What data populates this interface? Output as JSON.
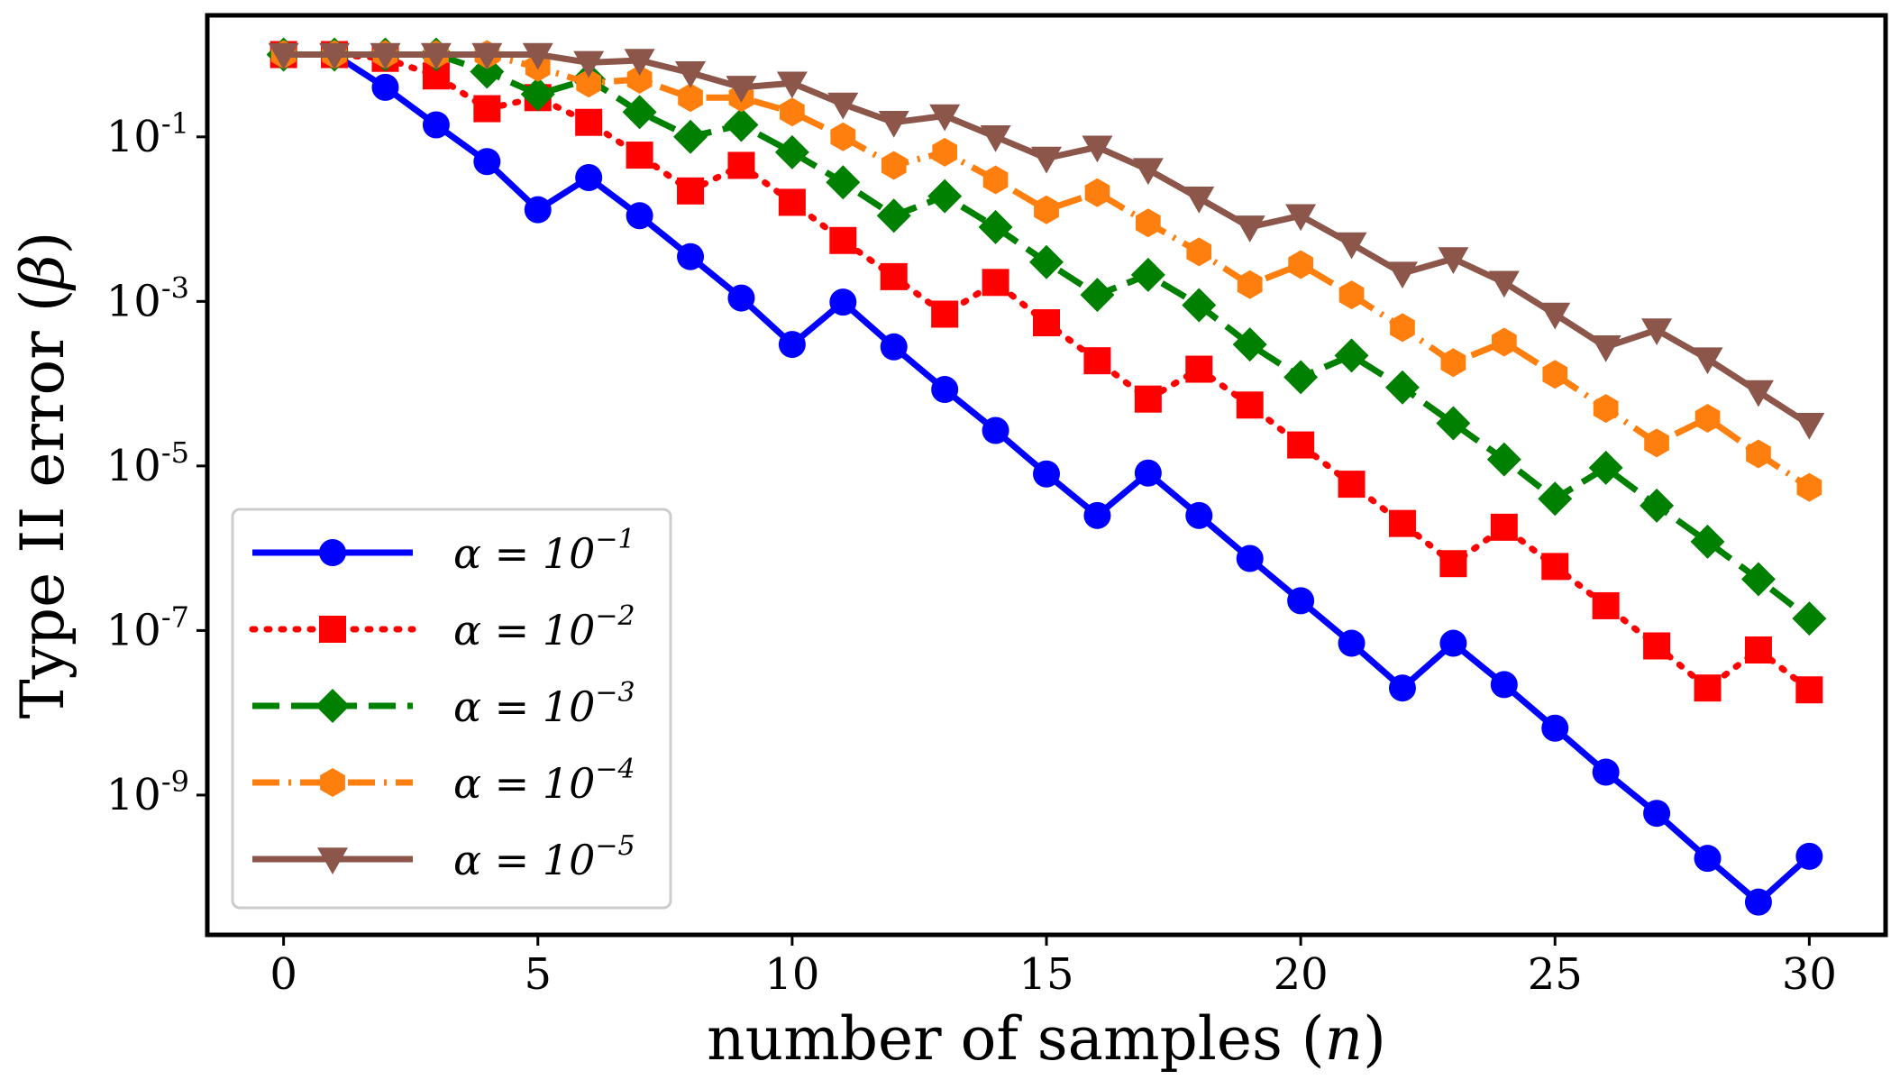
{
  "chart_data": {
    "type": "line",
    "xlabel": "number of samples (",
    "xlabel_var": "n",
    "xlabel_close": ")",
    "ylabel": "Type II error (",
    "ylabel_var": "β",
    "ylabel_close": ")",
    "xlim": [
      -1.5,
      31.5
    ],
    "ylim": [
      2e-11,
      3
    ],
    "yscale": "log",
    "xticks": [
      0,
      5,
      10,
      15,
      20,
      25,
      30
    ],
    "yticks": [
      {
        "value": 0.1,
        "base": "10",
        "exp": "-1"
      },
      {
        "value": 0.001,
        "base": "10",
        "exp": "-3"
      },
      {
        "value": 1e-05,
        "base": "10",
        "exp": "-5"
      },
      {
        "value": 1e-07,
        "base": "10",
        "exp": "-7"
      },
      {
        "value": 1e-09,
        "base": "10",
        "exp": "-9"
      }
    ],
    "legend_position": "lower-left",
    "grid": false,
    "x": [
      0,
      1,
      2,
      3,
      4,
      5,
      6,
      7,
      8,
      9,
      10,
      11,
      12,
      13,
      14,
      15,
      16,
      17,
      18,
      19,
      20,
      21,
      22,
      23,
      24,
      25,
      26,
      27,
      28,
      29,
      30
    ],
    "series": [
      {
        "name": "α = 10",
        "name_exp": "−1",
        "color": "#0000ff",
        "marker": "circle",
        "linestyle": "solid",
        "values": [
          1.0,
          1.0,
          0.4,
          0.14,
          0.05,
          0.013,
          0.032,
          0.011,
          0.0035,
          0.0011,
          0.0003,
          0.00098,
          0.00028,
          8.5e-05,
          2.7e-05,
          8e-06,
          2.5e-06,
          8.2e-06,
          2.5e-06,
          7.5e-07,
          2.3e-07,
          7e-08,
          2e-08,
          7e-08,
          2.2e-08,
          6.5e-09,
          1.9e-09,
          6e-10,
          1.7e-10,
          5e-11,
          1.8e-10
        ]
      },
      {
        "name": "α = 10",
        "name_exp": "−2",
        "color": "#ff0000",
        "marker": "square",
        "linestyle": "dotted",
        "values": [
          1.0,
          1.0,
          0.9,
          0.55,
          0.22,
          0.3,
          0.15,
          0.06,
          0.022,
          0.045,
          0.016,
          0.0055,
          0.002,
          0.0007,
          0.0017,
          0.00055,
          0.00019,
          6.5e-05,
          0.00015,
          5.5e-05,
          1.8e-05,
          6e-06,
          2e-06,
          6.5e-07,
          1.8e-06,
          6e-07,
          2e-07,
          6.5e-08,
          2e-08,
          5.8e-08,
          1.9e-08
        ]
      },
      {
        "name": "α = 10",
        "name_exp": "−3",
        "color": "#008000",
        "marker": "diamond",
        "linestyle": "dashed",
        "values": [
          1.0,
          1.0,
          1.0,
          1.0,
          0.62,
          0.33,
          0.5,
          0.2,
          0.1,
          0.14,
          0.065,
          0.028,
          0.011,
          0.019,
          0.008,
          0.003,
          0.0012,
          0.0021,
          0.0009,
          0.0003,
          0.00012,
          0.00022,
          9e-05,
          3.3e-05,
          1.2e-05,
          4e-06,
          9.5e-06,
          3.3e-06,
          1.2e-06,
          4.2e-07,
          1.4e-07
        ]
      },
      {
        "name": "α = 10",
        "name_exp": "−4",
        "color": "#ff7f0e",
        "marker": "hexagon",
        "linestyle": "dashdot",
        "values": [
          1.0,
          1.0,
          1.0,
          1.0,
          1.0,
          0.7,
          0.45,
          0.5,
          0.3,
          0.3,
          0.2,
          0.1,
          0.045,
          0.065,
          0.03,
          0.013,
          0.021,
          0.009,
          0.004,
          0.0016,
          0.0028,
          0.0012,
          0.00048,
          0.00018,
          0.00032,
          0.00013,
          5e-05,
          1.9e-05,
          3.8e-05,
          1.4e-05,
          5.5e-06
        ]
      },
      {
        "name": "α = 10",
        "name_exp": "−5",
        "color": "#8c564b",
        "marker": "triangle-down",
        "linestyle": "solid",
        "values": [
          1.0,
          1.0,
          1.0,
          1.0,
          1.0,
          1.0,
          0.8,
          0.85,
          0.6,
          0.4,
          0.45,
          0.25,
          0.15,
          0.18,
          0.1,
          0.055,
          0.075,
          0.04,
          0.018,
          0.008,
          0.011,
          0.005,
          0.0022,
          0.0033,
          0.0017,
          0.0007,
          0.00028,
          0.00045,
          0.0002,
          8e-05,
          3.2e-05
        ]
      }
    ]
  }
}
